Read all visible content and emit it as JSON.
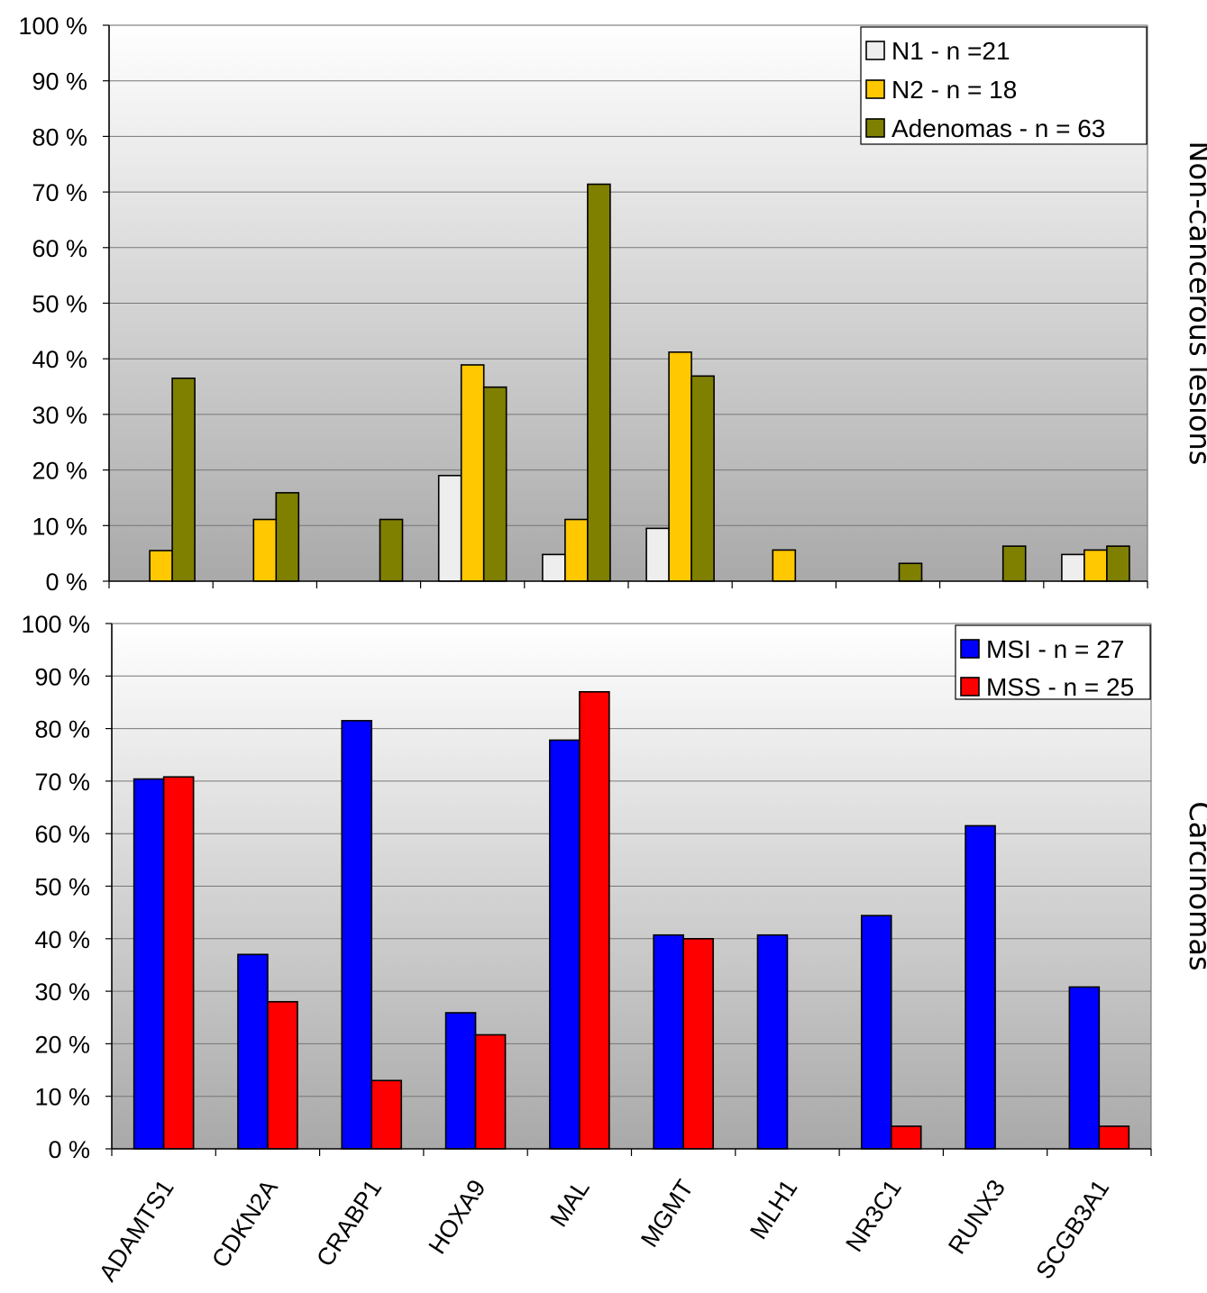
{
  "categories": [
    "ADAMTS1",
    "CDKN2A",
    "CRABP1",
    "HOXA9",
    "MAL",
    "MGMT",
    "MLH1",
    "NR3C1",
    "RUNX3",
    "SCGB3A1"
  ],
  "y_ticks": [
    "0 %",
    "10 %",
    "20 %",
    "30 %",
    "40 %",
    "50 %",
    "60 %",
    "70 %",
    "80 %",
    "90 %",
    "100 %"
  ],
  "colors": {
    "N1": "#eeeeee",
    "N2": "#ffc800",
    "Adenomas": "#808000",
    "MSI": "#0000ff",
    "MSS": "#ff0000"
  },
  "chart_data": [
    {
      "type": "bar",
      "side_label": "Non-cancerous lesions",
      "ylim": [
        0,
        100
      ],
      "grid": true,
      "legend_position": "top-right",
      "categories": [
        "ADAMTS1",
        "CDKN2A",
        "CRABP1",
        "HOXA9",
        "MAL",
        "MGMT",
        "MLH1",
        "NR3C1",
        "RUNX3",
        "SCGB3A1"
      ],
      "series": [
        {
          "name": "N1 - n =21",
          "key": "N1",
          "values": [
            0,
            0,
            0,
            19,
            4.8,
            9.5,
            0,
            0,
            0,
            4.8
          ]
        },
        {
          "name": "N2 - n = 18",
          "key": "N2",
          "values": [
            5.5,
            11.1,
            0,
            38.9,
            11.1,
            41.2,
            5.6,
            0,
            0,
            5.6
          ]
        },
        {
          "name": "Adenomas - n = 63",
          "key": "Adenomas",
          "values": [
            36.5,
            15.9,
            11.1,
            34.9,
            71.4,
            36.9,
            0,
            3.2,
            6.3,
            6.3
          ]
        }
      ]
    },
    {
      "type": "bar",
      "side_label": "Carcinomas",
      "ylim": [
        0,
        100
      ],
      "grid": true,
      "legend_position": "top-right",
      "categories": [
        "ADAMTS1",
        "CDKN2A",
        "CRABP1",
        "HOXA9",
        "MAL",
        "MGMT",
        "MLH1",
        "NR3C1",
        "RUNX3",
        "SCGB3A1"
      ],
      "series": [
        {
          "name": "MSI - n = 27",
          "key": "MSI",
          "values": [
            70.4,
            37,
            81.5,
            25.9,
            77.8,
            40.7,
            40.7,
            44.4,
            61.5,
            30.8
          ]
        },
        {
          "name": "MSS - n = 25",
          "key": "MSS",
          "values": [
            70.8,
            28,
            13,
            21.7,
            87,
            40,
            0,
            4.3,
            0,
            4.3
          ]
        }
      ]
    }
  ]
}
